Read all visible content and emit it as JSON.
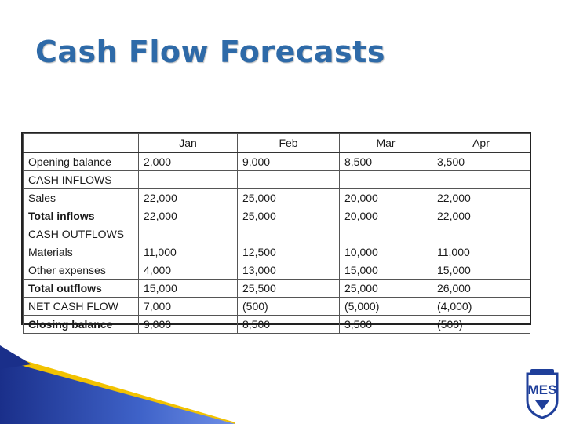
{
  "slide": {
    "title": "Cash Flow Forecasts"
  },
  "table": {
    "headers": [
      "",
      "Jan",
      "Feb",
      "Mar",
      "Apr"
    ],
    "rows": [
      {
        "label": "Opening balance",
        "values": [
          "2,000",
          "9,000",
          "8,500",
          "3,500"
        ],
        "bold": false
      },
      {
        "label": "CASH INFLOWS",
        "values": [
          "",
          "",
          "",
          ""
        ],
        "bold": false
      },
      {
        "label": "Sales",
        "values": [
          "22,000",
          "25,000",
          "20,000",
          "22,000"
        ],
        "bold": false
      },
      {
        "label": "Total inflows",
        "values": [
          "22,000",
          "25,000",
          "20,000",
          "22,000"
        ],
        "bold": true
      },
      {
        "label": "CASH OUTFLOWS",
        "values": [
          "",
          "",
          "",
          ""
        ],
        "bold": false
      },
      {
        "label": "Materials",
        "values": [
          "11,000",
          "12,500",
          "10,000",
          "11,000"
        ],
        "bold": false
      },
      {
        "label": "Other expenses",
        "values": [
          "4,000",
          "13,000",
          "15,000",
          "15,000"
        ],
        "bold": false
      },
      {
        "label": "Total outflows",
        "values": [
          "15,000",
          "25,500",
          "25,000",
          "26,000"
        ],
        "bold": true
      },
      {
        "label": "NET CASH FLOW",
        "values": [
          "7,000",
          "(500)",
          "(5,000)",
          "(4,000)"
        ],
        "bold": false
      },
      {
        "label": "Closing balance",
        "values": [
          "9,000",
          "8,500",
          "3,500",
          "(500)"
        ],
        "bold": true
      }
    ]
  },
  "colors": {
    "title": "#2e6aa8",
    "accent_blue": "#1f3f9a",
    "accent_yellow": "#f2c200"
  },
  "icons": {
    "logo": "mes-shield-logo-icon"
  },
  "logo": {
    "text": "MES"
  }
}
